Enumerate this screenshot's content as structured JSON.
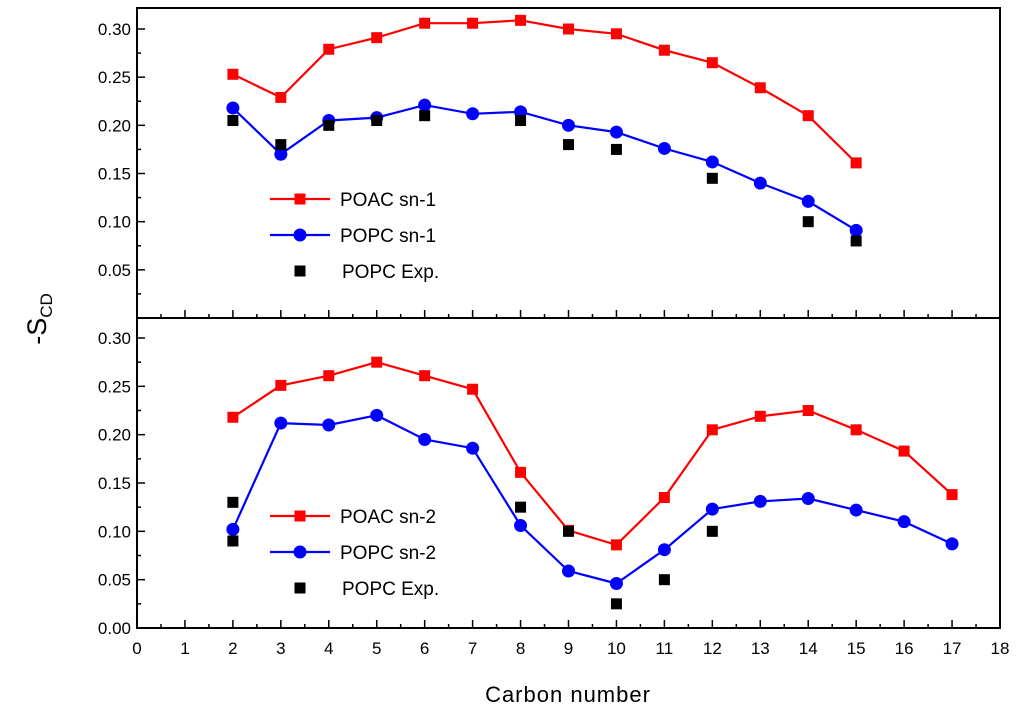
{
  "chart_data": [
    {
      "type": "line",
      "panel": "top",
      "x_range": [
        0,
        18
      ],
      "ylim": [
        0,
        0.32
      ],
      "y_ticks": [
        "0.05",
        "0.10",
        "0.15",
        "0.20",
        "0.25",
        "0.30"
      ],
      "series": [
        {
          "name": "POAC sn-1",
          "color": "#ff0000",
          "marker": "square",
          "line": true,
          "x": [
            2,
            3,
            4,
            5,
            6,
            7,
            8,
            9,
            10,
            11,
            12,
            13,
            14,
            15
          ],
          "values": [
            0.253,
            0.229,
            0.279,
            0.291,
            0.306,
            0.306,
            0.309,
            0.3,
            0.295,
            0.278,
            0.265,
            0.239,
            0.21,
            0.161
          ]
        },
        {
          "name": "POPC sn-1",
          "color": "#0000ff",
          "marker": "circle",
          "line": true,
          "x": [
            2,
            3,
            4,
            5,
            6,
            7,
            8,
            9,
            10,
            11,
            12,
            13,
            14,
            15
          ],
          "values": [
            0.218,
            0.17,
            0.205,
            0.208,
            0.221,
            0.212,
            0.214,
            0.2,
            0.193,
            0.176,
            0.162,
            0.14,
            0.121,
            0.091
          ]
        },
        {
          "name": "POPC Exp.",
          "color": "#000000",
          "marker": "square",
          "line": false,
          "x": [
            2,
            3,
            4,
            5,
            6,
            8,
            9,
            10,
            12,
            14,
            15
          ],
          "values": [
            0.205,
            0.18,
            0.2,
            0.205,
            0.21,
            0.205,
            0.18,
            0.175,
            0.145,
            0.1,
            0.08
          ]
        }
      ]
    },
    {
      "type": "line",
      "panel": "bottom",
      "x_range": [
        0,
        18
      ],
      "ylim": [
        0,
        0.32
      ],
      "y_ticks": [
        "0.00",
        "0.05",
        "0.10",
        "0.15",
        "0.20",
        "0.25",
        "0.30"
      ],
      "series": [
        {
          "name": "POAC sn-2",
          "color": "#ff0000",
          "marker": "square",
          "line": true,
          "x": [
            2,
            3,
            4,
            5,
            6,
            7,
            8,
            9,
            10,
            11,
            12,
            13,
            14,
            15,
            16,
            17
          ],
          "values": [
            0.218,
            0.251,
            0.261,
            0.275,
            0.261,
            0.247,
            0.161,
            0.101,
            0.086,
            0.135,
            0.205,
            0.219,
            0.225,
            0.205,
            0.183,
            0.138
          ]
        },
        {
          "name": "POPC sn-2",
          "color": "#0000ff",
          "marker": "circle",
          "line": true,
          "x": [
            2,
            3,
            4,
            5,
            6,
            7,
            8,
            9,
            10,
            11,
            12,
            13,
            14,
            15,
            16,
            17
          ],
          "values": [
            0.102,
            0.212,
            0.21,
            0.22,
            0.195,
            0.186,
            0.106,
            0.059,
            0.046,
            0.081,
            0.123,
            0.131,
            0.134,
            0.122,
            0.11,
            0.087
          ]
        },
        {
          "name": "POPC Exp.",
          "color": "#000000",
          "marker": "square",
          "line": false,
          "x": [
            2,
            2,
            8,
            9,
            10,
            11,
            12
          ],
          "values": [
            0.13,
            0.09,
            0.125,
            0.1,
            0.025,
            0.05,
            0.1
          ]
        }
      ]
    }
  ],
  "x_ticks": [
    "0",
    "1",
    "2",
    "3",
    "4",
    "5",
    "6",
    "7",
    "8",
    "9",
    "10",
    "11",
    "12",
    "13",
    "14",
    "15",
    "16",
    "17",
    "18"
  ],
  "xlabel": "Carbon number",
  "ylabel_main": "-S",
  "ylabel_sub": "CD"
}
